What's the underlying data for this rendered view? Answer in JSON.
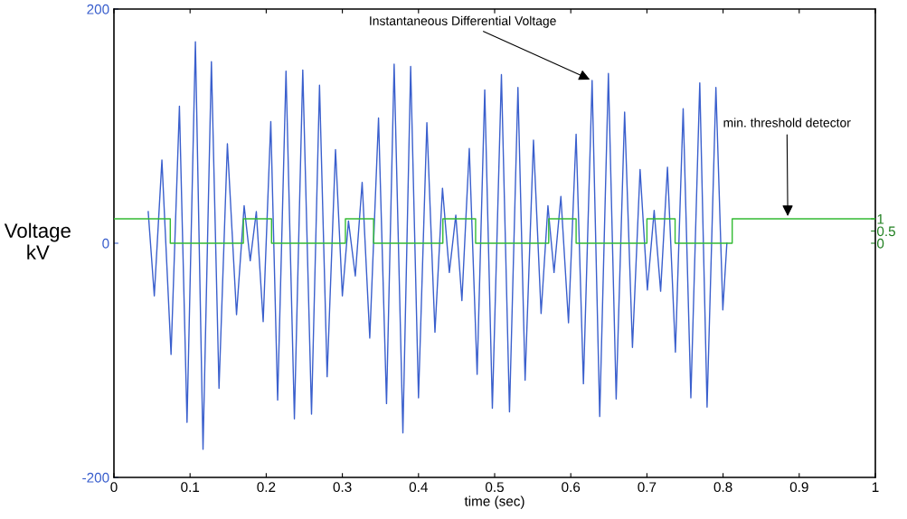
{
  "chart_data": {
    "type": "line",
    "xlabel": "time (sec)",
    "ylabel": "Voltage\nkV",
    "xlim": [
      0,
      1
    ],
    "xticks": [
      0,
      0.1,
      0.2,
      0.3,
      0.4,
      0.5,
      0.6,
      0.7,
      0.8,
      0.9,
      1
    ],
    "ylim": [
      -200,
      200
    ],
    "yticks": [
      -200,
      0,
      200
    ],
    "y2lim": [
      -9.6,
      9.6
    ],
    "y2ticks": [
      0,
      0.5,
      1
    ],
    "grid": false,
    "legend": false,
    "series": [
      {
        "color": "#3a5fcd",
        "x": [
          0.045,
          0.053,
          0.063,
          0.075,
          0.086,
          0.096,
          0.107,
          0.117,
          0.128,
          0.138,
          0.149,
          0.161,
          0.171,
          0.179,
          0.187,
          0.196,
          0.206,
          0.215,
          0.226,
          0.237,
          0.248,
          0.2595,
          0.27,
          0.28,
          0.291,
          0.3,
          0.308,
          0.317,
          0.326,
          0.336,
          0.3475,
          0.358,
          0.368,
          0.3795,
          0.3897,
          0.4,
          0.411,
          0.4216,
          0.4315,
          0.4405,
          0.449,
          0.457,
          0.4667,
          0.477,
          0.487,
          0.497,
          0.5089,
          0.5195,
          0.5306,
          0.54,
          0.551,
          0.561,
          0.57,
          0.578,
          0.587,
          0.597,
          0.607,
          0.6166,
          0.628,
          0.638,
          0.6494,
          0.6596,
          0.6707,
          0.681,
          0.691,
          0.7006,
          0.7095,
          0.718,
          0.727,
          0.7374,
          0.7476,
          0.7577,
          0.7694,
          0.779,
          0.7906,
          0.7997,
          0.805
        ],
        "values": [
          27,
          -45,
          71,
          -95,
          117,
          -153,
          172,
          -176,
          155,
          -124,
          85,
          -61,
          32,
          -15,
          27,
          -67,
          104,
          -134,
          147,
          -150,
          148,
          -146,
          135,
          -114,
          80,
          -45,
          19,
          -28,
          52,
          -81,
          107,
          -137,
          153,
          -162,
          151,
          -132,
          103,
          -76,
          47,
          -25,
          24,
          -49,
          81,
          -112,
          131,
          -141,
          144,
          -144,
          133,
          -117,
          88,
          -60,
          32,
          -25,
          40,
          -68,
          93,
          -120,
          139,
          -148,
          145,
          -133,
          112,
          -89,
          63,
          -40,
          28,
          -41,
          65,
          -93,
          115,
          -132,
          137,
          -140,
          133,
          -57,
          0
        ]
      },
      {
        "type": "step",
        "axis": "y2",
        "color": "#33bb33",
        "x": [
          0,
          0.074,
          0.17,
          0.207,
          0.304,
          0.341,
          0.432,
          0.475,
          0.571,
          0.607,
          0.7,
          0.737,
          0.812,
          1
        ],
        "values": [
          1,
          0,
          1,
          0,
          1,
          0,
          1,
          0,
          1,
          0,
          1,
          0,
          1,
          1
        ]
      }
    ],
    "annotations": [
      {
        "text": "Instantaneous Differential Voltage",
        "x": 0.628,
        "y": 139
      },
      {
        "text": "min. threshold detector",
        "x": 0.885,
        "y": 21
      }
    ]
  }
}
